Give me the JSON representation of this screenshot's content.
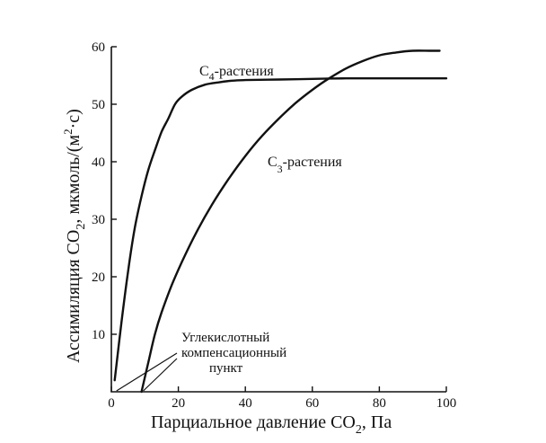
{
  "chart_data": {
    "type": "line",
    "xlabel": "Парциальное давление CO",
    "xlabel_sub": "2",
    "xlabel_unit": ", Па",
    "ylabel": "Ассимиляция CO",
    "ylabel_sub": "2",
    "ylabel_unit": ", мкмоль/(м",
    "ylabel_sup": "2",
    "ylabel_tail": "·с)",
    "xlim": [
      0,
      100
    ],
    "ylim": [
      0,
      60
    ],
    "x_ticks": [
      0,
      20,
      40,
      60,
      80,
      100
    ],
    "y_ticks": [
      10,
      20,
      30,
      40,
      50,
      60
    ],
    "grid": false,
    "series": [
      {
        "name": "C4-растения",
        "label_main": "C",
        "label_sub": "4",
        "label_rest": "-растения",
        "x": [
          1,
          3,
          5,
          7,
          9,
          11,
          13,
          15,
          17,
          19,
          21,
          24,
          28,
          32,
          36,
          40,
          50,
          60,
          70,
          80,
          90,
          100
        ],
        "y": [
          2,
          12,
          21,
          28.5,
          34,
          38.5,
          42,
          45.2,
          47.5,
          50,
          51.3,
          52.5,
          53.4,
          53.8,
          54.1,
          54.2,
          54.3,
          54.4,
          54.5,
          54.5,
          54.5,
          54.5
        ]
      },
      {
        "name": "C3-растения",
        "label_main": "C",
        "label_sub": "3",
        "label_rest": "-растения",
        "x": [
          9,
          11,
          13,
          15,
          18,
          21,
          25,
          30,
          35,
          40,
          45,
          50,
          55,
          60,
          65,
          70,
          75,
          80,
          85,
          90,
          95,
          98
        ],
        "y": [
          0,
          5,
          10,
          13.8,
          18.5,
          22.5,
          27.3,
          32.5,
          37,
          41,
          44.5,
          47.5,
          50.2,
          52.5,
          54.5,
          56.2,
          57.5,
          58.5,
          59,
          59.3,
          59.3,
          59.3
        ]
      }
    ],
    "annotation": {
      "lines": [
        "Углекислотный",
        "компенсационный",
        "пункт"
      ],
      "points": [
        [
          1,
          0
        ],
        [
          9,
          0
        ]
      ]
    }
  }
}
